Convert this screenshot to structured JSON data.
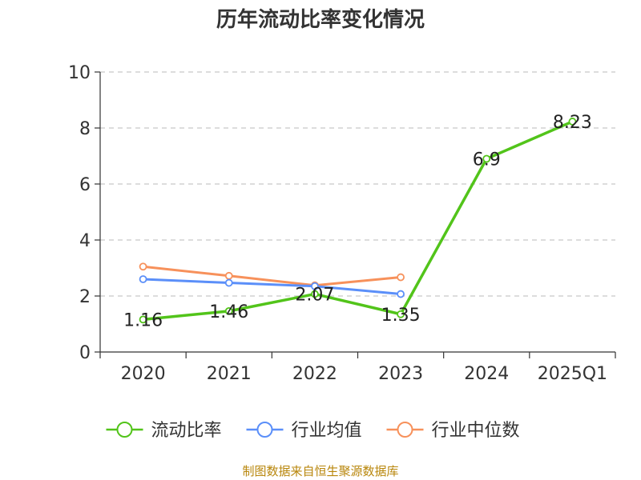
{
  "chart_data": {
    "type": "line",
    "title": "历年流动比率变化情况",
    "categories": [
      "2020",
      "2021",
      "2022",
      "2023",
      "2024",
      "2025Q1"
    ],
    "ylim": [
      0,
      10
    ],
    "yticks": [
      0,
      2,
      4,
      6,
      8,
      10
    ],
    "grid": true,
    "legend_position": "bottom",
    "series": [
      {
        "name": "流动比率",
        "color": "#52c41a",
        "values": [
          1.16,
          1.46,
          2.07,
          1.35,
          6.9,
          8.23
        ],
        "labels": [
          "1.16",
          "1.46",
          "2.07",
          "1.35",
          "6.9",
          "8.23"
        ]
      },
      {
        "name": "行业均值",
        "color": "#5b8ff9",
        "values": [
          2.6,
          2.47,
          2.35,
          2.07,
          null,
          null
        ]
      },
      {
        "name": "行业中位数",
        "color": "#f7915b",
        "values": [
          3.05,
          2.72,
          2.38,
          2.67,
          null,
          null
        ]
      }
    ]
  },
  "source": "制图数据来自恒生聚源数据库"
}
